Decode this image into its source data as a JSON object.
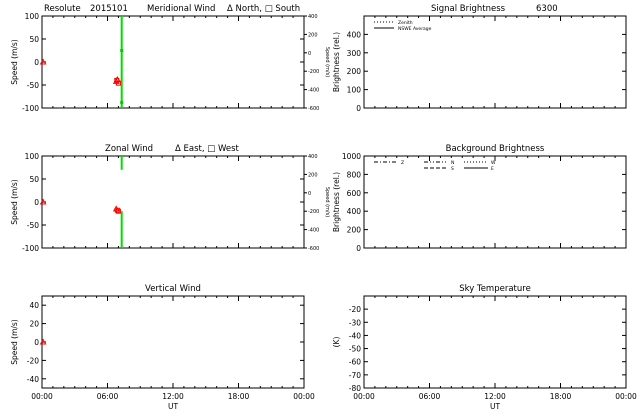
{
  "chart_data": [
    {
      "type": "scatter",
      "id": "meridional",
      "header": {
        "site": "Resolute",
        "date": "2015101",
        "title": "Meridional Wind",
        "legend": "Δ North, □ South"
      },
      "ylabel": "Speed (m/s)",
      "ylim": [
        -100,
        100
      ],
      "yticks": [
        100,
        50,
        0,
        -50,
        -100
      ],
      "right_axis": {
        "label": "Speed (m/s)",
        "ylim": [
          -600,
          400
        ],
        "ticks": [
          400,
          200,
          0,
          -200,
          -400,
          -600
        ]
      },
      "xlim": [
        0,
        24
      ],
      "xticks": [
        "00:00",
        "06:00",
        "12:00",
        "18:00",
        "00:00"
      ],
      "series": [
        {
          "marker": "triangle",
          "color": "#ff0000",
          "x": [
            0.1,
            6.8,
            6.9
          ],
          "y": [
            0,
            -42,
            -38
          ]
        },
        {
          "marker": "square",
          "color": "#ff0000",
          "x": [
            6.85,
            7.0
          ],
          "y": [
            -40,
            -46
          ]
        }
      ],
      "green_lines": [
        {
          "x": 7.3,
          "y1": 100,
          "y2": -100
        },
        {
          "x": 7.3,
          "y1": 25,
          "y2": 25,
          "dot": true
        },
        {
          "x": 7.3,
          "y1": -88,
          "y2": -88,
          "dot": true
        }
      ],
      "show_xlabels": false
    },
    {
      "type": "scatter",
      "id": "zonal",
      "header": {
        "title": "Zonal Wind",
        "legend": "Δ East, □ West"
      },
      "ylabel": "Speed (m/s)",
      "ylim": [
        -100,
        100
      ],
      "yticks": [
        100,
        50,
        0,
        -50,
        -100
      ],
      "right_axis": {
        "label": "Speed (m/s)",
        "ylim": [
          -600,
          400
        ],
        "ticks": [
          400,
          200,
          0,
          -200,
          -400,
          -600
        ]
      },
      "xlim": [
        0,
        24
      ],
      "xticks": [
        "00:00",
        "06:00",
        "12:00",
        "18:00",
        "00:00"
      ],
      "series": [
        {
          "marker": "triangle",
          "color": "#ff0000",
          "x": [
            0.1,
            6.8
          ],
          "y": [
            0,
            -15
          ]
        },
        {
          "marker": "square",
          "color": "#ff0000",
          "x": [
            6.9,
            7.0
          ],
          "y": [
            -18,
            -20
          ]
        }
      ],
      "green_lines": [
        {
          "x": 7.3,
          "y1": 100,
          "y2": 70
        },
        {
          "x": 7.3,
          "y1": -20,
          "y2": -100
        }
      ],
      "show_xlabels": false
    },
    {
      "type": "scatter",
      "id": "vertical",
      "header": {
        "title": "Vertical Wind"
      },
      "ylabel": "Speed (m/s)",
      "ylim": [
        -50,
        50
      ],
      "yticks": [
        40,
        20,
        0,
        -20,
        -40
      ],
      "xlim": [
        0,
        24
      ],
      "xticks": [
        "00:00",
        "06:00",
        "12:00",
        "18:00",
        "00:00"
      ],
      "xlabel": "UT",
      "series": [
        {
          "marker": "triangle",
          "color": "#ff0000",
          "x": [
            0.1
          ],
          "y": [
            0
          ]
        }
      ],
      "show_xlabels": true
    },
    {
      "type": "line",
      "id": "signal",
      "header": {
        "title": "Signal Brightness",
        "wavelength": "6300"
      },
      "ylabel": "Brightness (rel.)",
      "ylim": [
        0,
        500
      ],
      "yticks": [
        400,
        300,
        200,
        100,
        0
      ],
      "xlim": [
        0,
        24
      ],
      "legend": [
        {
          "label": "Zenith",
          "style": "dotted"
        },
        {
          "label": "NSWE Average",
          "style": "solid"
        }
      ],
      "series": [],
      "show_xlabels": false
    },
    {
      "type": "line",
      "id": "background",
      "header": {
        "title": "Background Brightness"
      },
      "ylabel": "Brightness (rel.)",
      "ylim": [
        0,
        1000
      ],
      "yticks": [
        1000,
        800,
        600,
        400,
        200,
        0
      ],
      "xlim": [
        0,
        24
      ],
      "legend": [
        {
          "label": "Z",
          "style": "dashdot"
        },
        {
          "label": "N",
          "style": "dashdotdot"
        },
        {
          "label": "S",
          "style": "dashed"
        },
        {
          "label": "W",
          "style": "dotted"
        },
        {
          "label": "E",
          "style": "solid"
        }
      ],
      "series": [],
      "show_xlabels": false
    },
    {
      "type": "line",
      "id": "skytemp",
      "header": {
        "title": "Sky Temperature"
      },
      "ylabel": "(K)",
      "ylim": [
        -80,
        -10
      ],
      "yticks": [
        -20,
        -30,
        -40,
        -50,
        -60,
        -70,
        -80
      ],
      "xlim": [
        0,
        24
      ],
      "xticks": [
        "00:00",
        "06:00",
        "12:00",
        "18:00",
        "00:00"
      ],
      "xlabel": "UT",
      "series": [],
      "show_xlabels": true
    }
  ]
}
